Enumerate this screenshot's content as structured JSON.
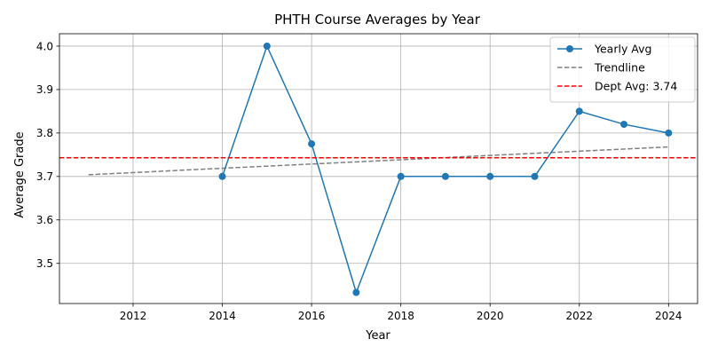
{
  "chart_data": {
    "type": "line",
    "title": "PHTH Course Averages by Year",
    "xlabel": "Year",
    "ylabel": "Average Grade",
    "xlim": [
      2010.35,
      2024.65
    ],
    "ylim": [
      3.4075,
      4.0285
    ],
    "x_ticks": [
      2012,
      2014,
      2016,
      2018,
      2020,
      2022,
      2024
    ],
    "y_ticks": [
      3.5,
      3.6,
      3.7,
      3.8,
      3.9,
      4.0
    ],
    "x_tick_labels": [
      "2012",
      "2014",
      "2016",
      "2018",
      "2020",
      "2022",
      "2024"
    ],
    "y_tick_labels": [
      "3.5",
      "3.6",
      "3.7",
      "3.8",
      "3.9",
      "4.0"
    ],
    "grid": true,
    "legend_position": "top-right",
    "series": [
      {
        "name": "Yearly Avg",
        "style": "solid line with circle markers",
        "color": "#1f77b4",
        "x": [
          2014,
          2015,
          2016,
          2017,
          2018,
          2019,
          2020,
          2021,
          2022,
          2023,
          2024
        ],
        "y": [
          3.7,
          4.0,
          3.775,
          3.433,
          3.7,
          3.7,
          3.7,
          3.7,
          3.85,
          3.82,
          3.8
        ]
      },
      {
        "name": "Trendline",
        "style": "dashed",
        "color": "#808080",
        "x": [
          2011,
          2024
        ],
        "y": [
          3.704,
          3.768
        ]
      },
      {
        "name": "Dept Avg: 3.74",
        "style": "dashed horizontal",
        "color": "#ff0000",
        "value": 3.743
      }
    ]
  }
}
